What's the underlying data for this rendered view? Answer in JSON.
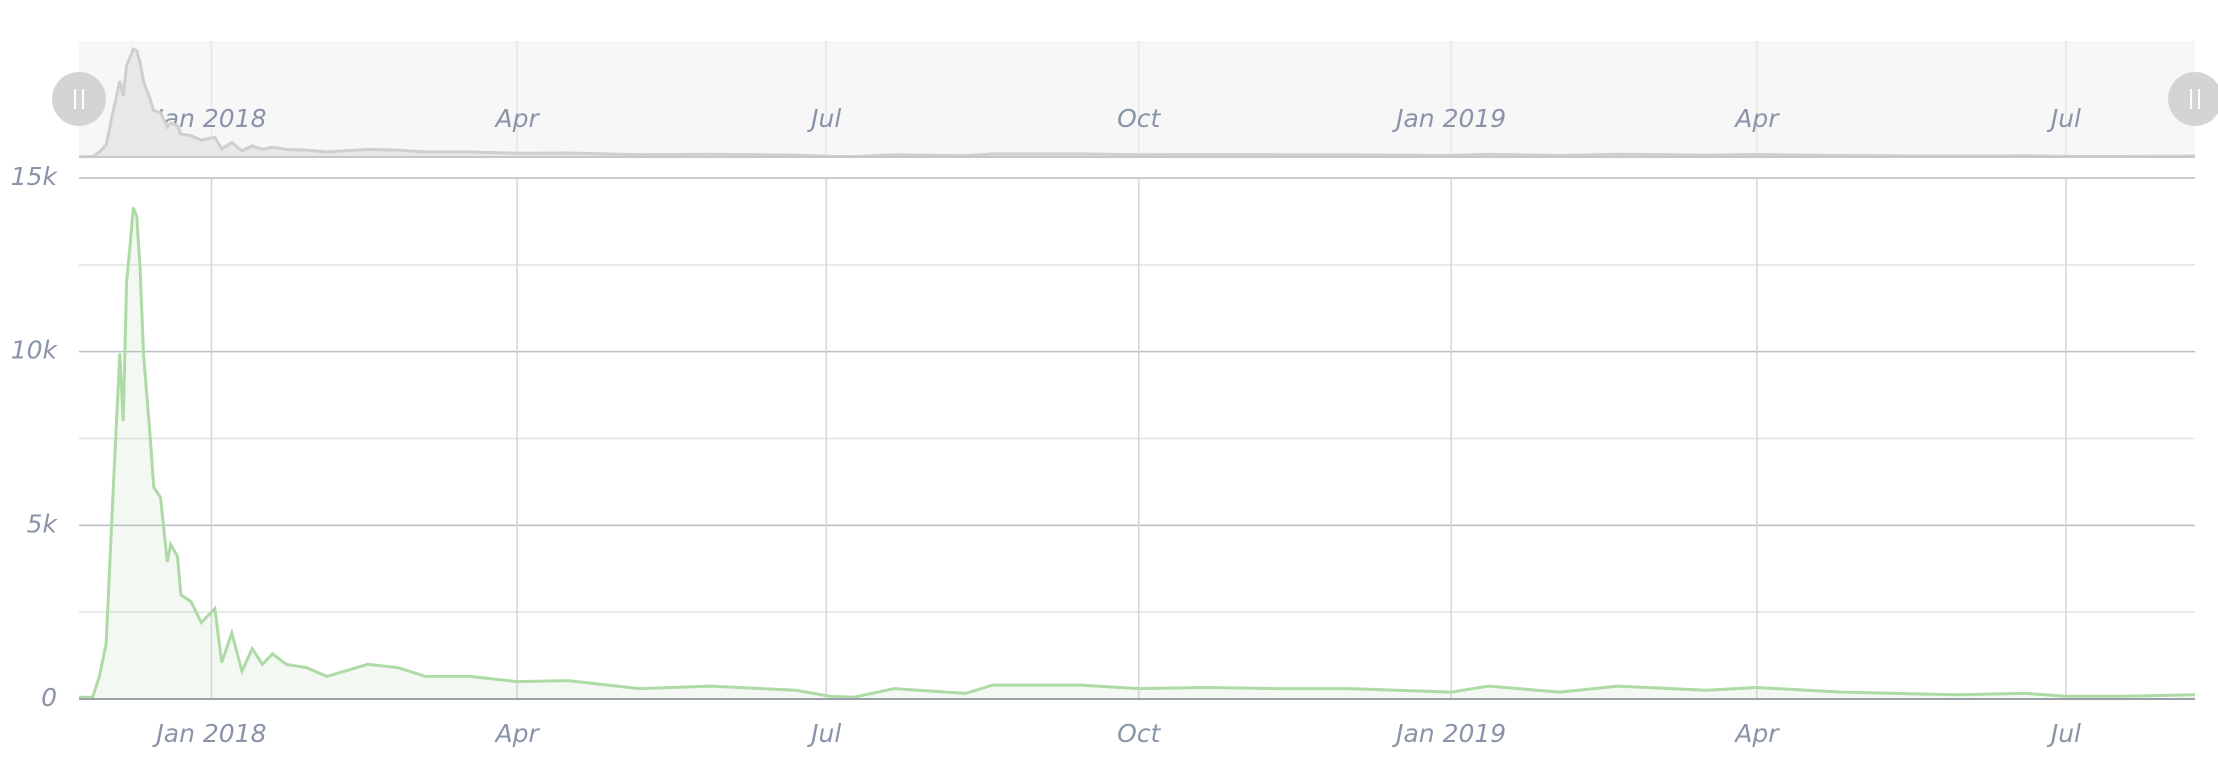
{
  "chart_data": {
    "type": "area",
    "x": [
      "2017-11-23",
      "2017-11-27",
      "2017-11-29",
      "2017-12-01",
      "2017-12-03",
      "2017-12-05",
      "2017-12-06",
      "2017-12-07",
      "2017-12-08",
      "2017-12-09",
      "2017-12-10",
      "2017-12-11",
      "2017-12-12",
      "2017-12-14",
      "2017-12-15",
      "2017-12-17",
      "2017-12-19",
      "2017-12-20",
      "2017-12-22",
      "2017-12-23",
      "2017-12-26",
      "2017-12-29",
      "2018-01-02",
      "2018-01-04",
      "2018-01-07",
      "2018-01-10",
      "2018-01-13",
      "2018-01-16",
      "2018-01-19",
      "2018-01-23",
      "2018-01-29",
      "2018-02-04",
      "2018-02-16",
      "2018-02-25",
      "2018-03-05",
      "2018-03-18",
      "2018-04-01",
      "2018-04-16",
      "2018-05-07",
      "2018-05-28",
      "2018-06-22",
      "2018-07-02",
      "2018-07-09",
      "2018-07-21",
      "2018-08-11",
      "2018-08-19",
      "2018-09-14",
      "2018-10-01",
      "2018-10-21",
      "2018-11-11",
      "2018-12-02",
      "2019-01-01",
      "2019-01-12",
      "2019-02-02",
      "2019-02-19",
      "2019-03-17",
      "2019-04-01",
      "2019-04-26",
      "2019-05-30",
      "2019-06-19",
      "2019-07-01",
      "2019-07-18",
      "2019-08-08"
    ],
    "series": [
      {
        "color": "#aedaa6",
        "values": [
          50,
          50,
          650,
          1600,
          5900,
          9950,
          8000,
          12000,
          13000,
          14150,
          13900,
          12400,
          9950,
          7500,
          6100,
          5800,
          3950,
          4450,
          4100,
          3000,
          2800,
          2200,
          2600,
          1050,
          1900,
          800,
          1450,
          1000,
          1300,
          1000,
          900,
          650,
          1000,
          900,
          650,
          650,
          500,
          530,
          300,
          370,
          250,
          80,
          50,
          300,
          160,
          400,
          400,
          300,
          330,
          300,
          300,
          200,
          370,
          200,
          370,
          250,
          330,
          200,
          120,
          160,
          80,
          80,
          120
        ]
      }
    ],
    "xlim": [
      "2017-11-23",
      "2019-08-08"
    ],
    "xticks": [
      {
        "value": "2018-01-01",
        "label": "Jan 2018"
      },
      {
        "value": "2018-04-01",
        "label": "Apr"
      },
      {
        "value": "2018-07-01",
        "label": "Jul"
      },
      {
        "value": "2018-10-01",
        "label": "Oct"
      },
      {
        "value": "2019-01-01",
        "label": "Jan 2019"
      },
      {
        "value": "2019-04-01",
        "label": "Apr"
      },
      {
        "value": "2019-07-01",
        "label": "Jul"
      }
    ],
    "ylim": [
      0,
      15000
    ],
    "yticks": [
      0,
      {
        "value": 5000,
        "label": "5k"
      },
      {
        "value": 10000,
        "label": "10k"
      },
      {
        "value": 15000,
        "label": "15k"
      }
    ],
    "minor_gridlines": [
      2500,
      7500,
      12500
    ],
    "grid": true,
    "navigator": true
  }
}
